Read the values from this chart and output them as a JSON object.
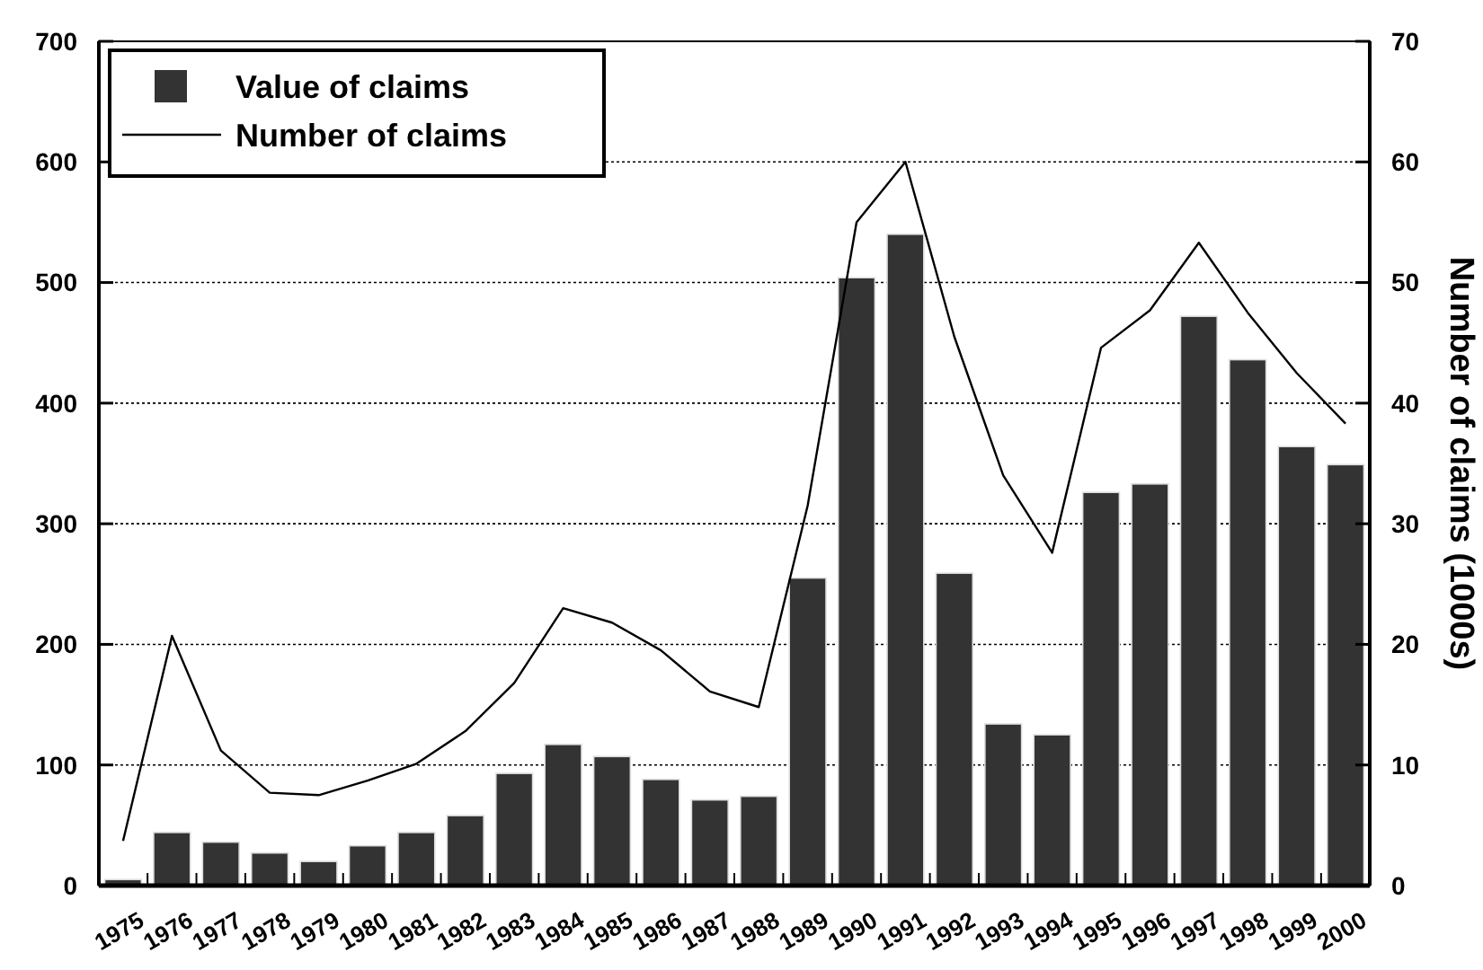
{
  "chart_data": {
    "type": "bar",
    "categories": [
      "1975",
      "1976",
      "1977",
      "1978",
      "1979",
      "1980",
      "1981",
      "1982",
      "1983",
      "1984",
      "1985",
      "1986",
      "1987",
      "1988",
      "1989",
      "1990",
      "1991",
      "1992",
      "1993",
      "1994",
      "1995",
      "1996",
      "1997",
      "1998",
      "1999",
      "2000"
    ],
    "series": [
      {
        "name": "Value of claims",
        "color": "#333333",
        "values": [
          5,
          44,
          36,
          27,
          20,
          33,
          44,
          58,
          93,
          117,
          107,
          88,
          71,
          74,
          255,
          504,
          540,
          259,
          134,
          125,
          326,
          333,
          472,
          436,
          364,
          349
        ]
      },
      {
        "name": "Number of claims",
        "type": "line",
        "axis": "y2",
        "color": "#000000",
        "values": [
          3.7,
          20.7,
          11.2,
          7.7,
          7.5,
          8.7,
          10.1,
          12.8,
          16.8,
          23,
          21.8,
          19.5,
          16.1,
          14.8,
          31.5,
          55,
          60,
          45.5,
          34,
          27.6,
          44.6,
          47.7,
          53.3,
          47.5,
          42.5,
          38.3
        ]
      }
    ],
    "ylim": [
      0,
      700
    ],
    "yticks": [
      0,
      100,
      200,
      300,
      400,
      500,
      600,
      700
    ],
    "y2lim": [
      0,
      70
    ],
    "y2ticks": [
      0,
      10,
      20,
      30,
      40,
      50,
      60,
      70
    ],
    "y2label": "Number of claims (1000s)",
    "grid": "y",
    "legend": "top left",
    "marker": "none",
    "line_style": "solid"
  }
}
